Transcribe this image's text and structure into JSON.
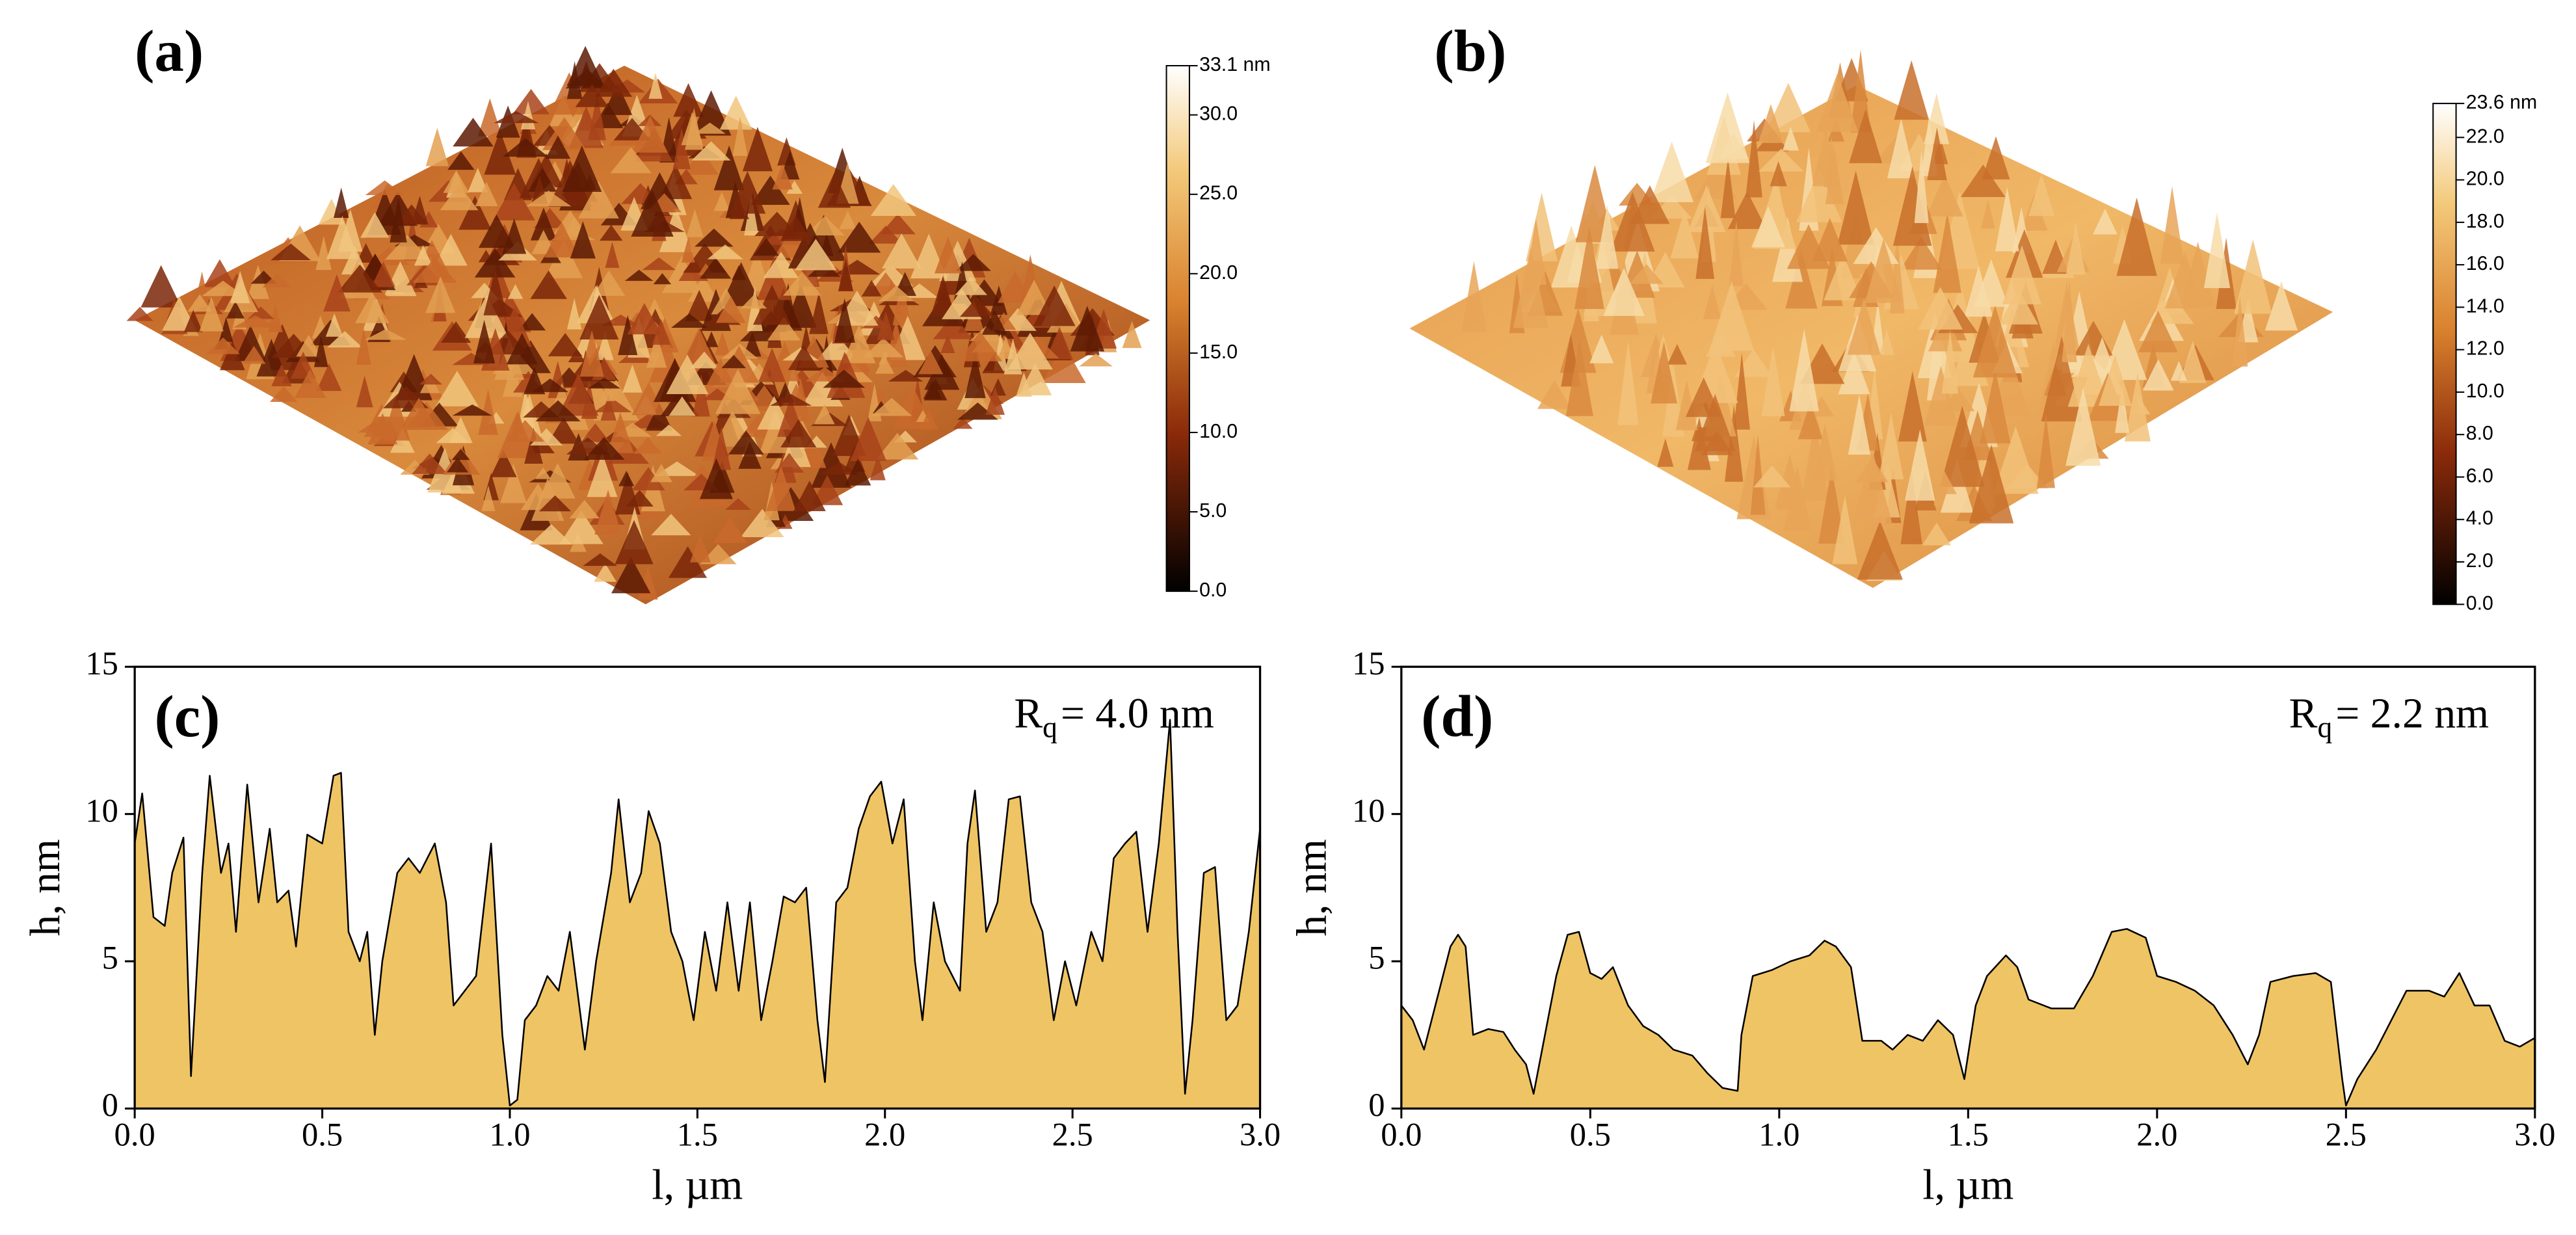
{
  "panels": [
    {
      "label": "(a)",
      "colorbar": {
        "lim": [
          0,
          33.1
        ],
        "ticks": [
          {
            "value": 33.1,
            "label": "33.1 nm"
          },
          {
            "value": 30,
            "label": "30.0"
          },
          {
            "value": 25,
            "label": "25.0"
          },
          {
            "value": 20,
            "label": "20.0"
          },
          {
            "value": 15,
            "label": "15.0"
          },
          {
            "value": 10,
            "label": "10.0"
          },
          {
            "value": 5,
            "label": "5.0"
          },
          {
            "value": 0,
            "label": "0.0"
          }
        ]
      }
    },
    {
      "label": "(b)",
      "colorbar": {
        "lim": [
          0,
          23.6
        ],
        "ticks": [
          {
            "value": 23.6,
            "label": "23.6 nm"
          },
          {
            "value": 22,
            "label": "22.0"
          },
          {
            "value": 20,
            "label": "20.0"
          },
          {
            "value": 18,
            "label": "18.0"
          },
          {
            "value": 16,
            "label": "16.0"
          },
          {
            "value": 14,
            "label": "14.0"
          },
          {
            "value": 12,
            "label": "12.0"
          },
          {
            "value": 10,
            "label": "10.0"
          },
          {
            "value": 8,
            "label": "8.0"
          },
          {
            "value": 6,
            "label": "6.0"
          },
          {
            "value": 4,
            "label": "4.0"
          },
          {
            "value": 2,
            "label": "2.0"
          },
          {
            "value": 0,
            "label": "0.0"
          }
        ]
      }
    }
  ],
  "chart_data": [
    {
      "type": "area",
      "label": "(c)",
      "x_label": "l, µm",
      "y_label": "h, nm",
      "annotation": {
        "text": "R",
        "subscript": "q",
        "suffix": "= 4.0 nm"
      },
      "color": "#efc464",
      "xlim": [
        0,
        3
      ],
      "ylim": [
        0,
        15
      ],
      "xticks": [
        {
          "value": 0,
          "label": "0.0"
        },
        {
          "value": 0.5,
          "label": "0.5"
        },
        {
          "value": 1,
          "label": "1.0"
        },
        {
          "value": 1.5,
          "label": "1.5"
        },
        {
          "value": 2,
          "label": "2.0"
        },
        {
          "value": 2.5,
          "label": "2.5"
        },
        {
          "value": 3,
          "label": "3.0"
        }
      ],
      "yticks": [
        0,
        5,
        10,
        15
      ],
      "x": [
        0,
        0.02,
        0.05,
        0.08,
        0.1,
        0.13,
        0.15,
        0.18,
        0.2,
        0.23,
        0.25,
        0.27,
        0.3,
        0.33,
        0.36,
        0.38,
        0.41,
        0.43,
        0.46,
        0.5,
        0.53,
        0.55,
        0.57,
        0.6,
        0.62,
        0.64,
        0.66,
        0.7,
        0.73,
        0.76,
        0.8,
        0.83,
        0.85,
        0.88,
        0.91,
        0.95,
        0.98,
        1.0,
        1.02,
        1.04,
        1.07,
        1.1,
        1.13,
        1.16,
        1.2,
        1.23,
        1.27,
        1.29,
        1.32,
        1.35,
        1.37,
        1.4,
        1.43,
        1.46,
        1.49,
        1.52,
        1.55,
        1.58,
        1.61,
        1.64,
        1.67,
        1.7,
        1.73,
        1.76,
        1.79,
        1.82,
        1.84,
        1.87,
        1.9,
        1.93,
        1.96,
        1.99,
        2.02,
        2.05,
        2.08,
        2.1,
        2.13,
        2.16,
        2.2,
        2.22,
        2.24,
        2.27,
        2.3,
        2.33,
        2.36,
        2.39,
        2.42,
        2.45,
        2.48,
        2.51,
        2.55,
        2.58,
        2.61,
        2.64,
        2.67,
        2.7,
        2.73,
        2.76,
        2.78,
        2.8,
        2.82,
        2.85,
        2.88,
        2.91,
        2.94,
        2.97,
        3.0
      ],
      "values": [
        9,
        10.7,
        6.5,
        6.2,
        8,
        9.2,
        1.1,
        8,
        11.3,
        8,
        9,
        6,
        11,
        7,
        9.5,
        7,
        7.4,
        5.5,
        9.3,
        9,
        11.3,
        11.4,
        6,
        5,
        6,
        2.5,
        5,
        8,
        8.5,
        8,
        9,
        7,
        3.5,
        4,
        4.5,
        9,
        2.5,
        0.1,
        0.3,
        3,
        3.5,
        4.5,
        4,
        6,
        2,
        5,
        8,
        10.5,
        7,
        8,
        10.1,
        9,
        6,
        5,
        3,
        6,
        4,
        7,
        4,
        7,
        3,
        5,
        7.2,
        7,
        7.5,
        3,
        0.9,
        7,
        7.5,
        9.5,
        10.6,
        11.1,
        9,
        10.5,
        5,
        3,
        7,
        5,
        4,
        9,
        10.8,
        6,
        7,
        10.5,
        10.6,
        7,
        6,
        3,
        5,
        3.5,
        6,
        5,
        8.5,
        9,
        9.4,
        6,
        9,
        13.2,
        6,
        0.5,
        3,
        8,
        8.2,
        3,
        3.5,
        6,
        9.5
      ]
    },
    {
      "type": "area",
      "label": "(d)",
      "x_label": "l, µm",
      "y_label": "h, nm",
      "annotation": {
        "text": "R",
        "subscript": "q",
        "suffix": "= 2.2 nm"
      },
      "color": "#efc464",
      "xlim": [
        0,
        3
      ],
      "ylim": [
        0,
        15
      ],
      "xticks": [
        {
          "value": 0,
          "label": "0.0"
        },
        {
          "value": 0.5,
          "label": "0.5"
        },
        {
          "value": 1,
          "label": "1.0"
        },
        {
          "value": 1.5,
          "label": "1.5"
        },
        {
          "value": 2,
          "label": "2.0"
        },
        {
          "value": 2.5,
          "label": "2.5"
        },
        {
          "value": 3,
          "label": "3.0"
        }
      ],
      "yticks": [
        0,
        5,
        10,
        15
      ],
      "x": [
        0,
        0.03,
        0.06,
        0.1,
        0.13,
        0.15,
        0.17,
        0.19,
        0.23,
        0.27,
        0.3,
        0.33,
        0.35,
        0.38,
        0.41,
        0.44,
        0.47,
        0.5,
        0.53,
        0.56,
        0.6,
        0.64,
        0.68,
        0.72,
        0.77,
        0.81,
        0.85,
        0.89,
        0.9,
        0.93,
        0.98,
        1.03,
        1.08,
        1.12,
        1.15,
        1.19,
        1.22,
        1.27,
        1.3,
        1.34,
        1.38,
        1.42,
        1.46,
        1.49,
        1.52,
        1.55,
        1.6,
        1.63,
        1.66,
        1.72,
        1.78,
        1.83,
        1.88,
        1.92,
        1.97,
        2.0,
        2.05,
        2.1,
        2.15,
        2.2,
        2.24,
        2.27,
        2.3,
        2.36,
        2.42,
        2.46,
        2.49,
        2.5,
        2.53,
        2.58,
        2.62,
        2.66,
        2.72,
        2.76,
        2.8,
        2.84,
        2.88,
        2.92,
        2.96,
        3.0
      ],
      "values": [
        3.5,
        3,
        2,
        4,
        5.5,
        5.9,
        5.5,
        2.5,
        2.7,
        2.6,
        2,
        1.5,
        0.5,
        2.5,
        4.5,
        5.9,
        6,
        4.6,
        4.4,
        4.8,
        3.5,
        2.8,
        2.5,
        2,
        1.8,
        1.2,
        0.7,
        0.6,
        2.5,
        4.5,
        4.7,
        5,
        5.2,
        5.7,
        5.5,
        4.8,
        2.3,
        2.3,
        2,
        2.5,
        2.3,
        3,
        2.5,
        1,
        3.5,
        4.5,
        5.2,
        4.8,
        3.7,
        3.4,
        3.4,
        4.5,
        6,
        6.1,
        5.8,
        4.5,
        4.3,
        4,
        3.5,
        2.5,
        1.5,
        2.5,
        4.3,
        4.5,
        4.6,
        4.3,
        1,
        0.1,
        1,
        2,
        3,
        4,
        4,
        3.8,
        4.6,
        3.5,
        3.5,
        2.3,
        2.1,
        2.4
      ]
    }
  ]
}
